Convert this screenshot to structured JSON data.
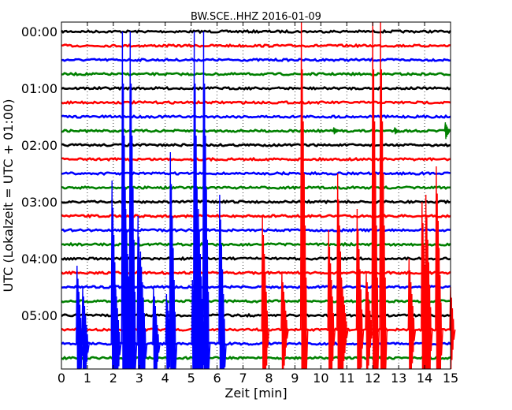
{
  "chart_data": {
    "type": "line",
    "title": "BW.SCE..HHZ 2016-01-09",
    "xlabel": "Zeit  [min]",
    "ylabel": "UTC (Lokalzeit = UTC + 01:00)",
    "xlim": [
      0,
      15
    ],
    "x_ticks": [
      "0",
      "1",
      "2",
      "3",
      "4",
      "5",
      "6",
      "7",
      "8",
      "9",
      "10",
      "11",
      "12",
      "13",
      "14",
      "15"
    ],
    "y_ticks": [
      "00:00",
      "01:00",
      "02:00",
      "03:00",
      "04:00",
      "05:00"
    ],
    "traces_per_hour": 4,
    "trace_count": 24,
    "trace_colors": [
      "#000000",
      "#ff0000",
      "#0000ff",
      "#008000"
    ],
    "grid": "vertical dotted at each minute",
    "events": [
      {
        "trace": 0,
        "t": 0.6,
        "amp": 0
      },
      {
        "trace": 2,
        "t": 0.6,
        "amp": 0
      },
      {
        "trace": 22,
        "t": 0.6,
        "amp": 5.5
      },
      {
        "trace": 22,
        "t": 0.82,
        "amp": 4.0
      },
      {
        "trace": 22,
        "t": 1.95,
        "amp": 11.5
      },
      {
        "trace": 22,
        "t": 2.05,
        "amp": 5.0
      },
      {
        "trace": 22,
        "t": 2.35,
        "amp": 22
      },
      {
        "trace": 22,
        "t": 2.48,
        "amp": 9.5
      },
      {
        "trace": 22,
        "t": 2.65,
        "amp": 22
      },
      {
        "trace": 22,
        "t": 2.95,
        "amp": 9.0
      },
      {
        "trace": 22,
        "t": 3.05,
        "amp": 6.5
      },
      {
        "trace": 22,
        "t": 3.55,
        "amp": 4.0
      },
      {
        "trace": 22,
        "t": 4.05,
        "amp": 3.5
      },
      {
        "trace": 22,
        "t": 4.2,
        "amp": 13.5
      },
      {
        "trace": 22,
        "t": 5.05,
        "amp": 4.5
      },
      {
        "trace": 22,
        "t": 5.12,
        "amp": 22
      },
      {
        "trace": 22,
        "t": 5.28,
        "amp": 9.5
      },
      {
        "trace": 22,
        "t": 5.48,
        "amp": 22
      },
      {
        "trace": 22,
        "t": 6.1,
        "amp": 10.5
      },
      {
        "trace": 21,
        "t": 7.75,
        "amp": 8.0
      },
      {
        "trace": 21,
        "t": 8.5,
        "amp": 4.0
      },
      {
        "trace": 21,
        "t": 9.25,
        "amp": 22
      },
      {
        "trace": 21,
        "t": 10.3,
        "amp": 7.0
      },
      {
        "trace": 21,
        "t": 10.65,
        "amp": 11.0
      },
      {
        "trace": 21,
        "t": 10.8,
        "amp": 3.5
      },
      {
        "trace": 21,
        "t": 11.4,
        "amp": 8.5
      },
      {
        "trace": 21,
        "t": 11.75,
        "amp": 4.0
      },
      {
        "trace": 21,
        "t": 12.0,
        "amp": 22
      },
      {
        "trace": 21,
        "t": 12.3,
        "amp": 22
      },
      {
        "trace": 21,
        "t": 13.4,
        "amp": 5.0
      },
      {
        "trace": 21,
        "t": 13.9,
        "amp": 9.0
      },
      {
        "trace": 21,
        "t": 14.05,
        "amp": 9.5
      },
      {
        "trace": 21,
        "t": 14.45,
        "amp": 11.5
      },
      {
        "trace": 21,
        "t": 15.0,
        "amp": 3.0
      },
      {
        "trace": 7,
        "t": 10.5,
        "amp": 0.25
      },
      {
        "trace": 7,
        "t": 12.85,
        "amp": 0.25
      },
      {
        "trace": 7,
        "t": 14.8,
        "amp": 0.6
      }
    ]
  }
}
